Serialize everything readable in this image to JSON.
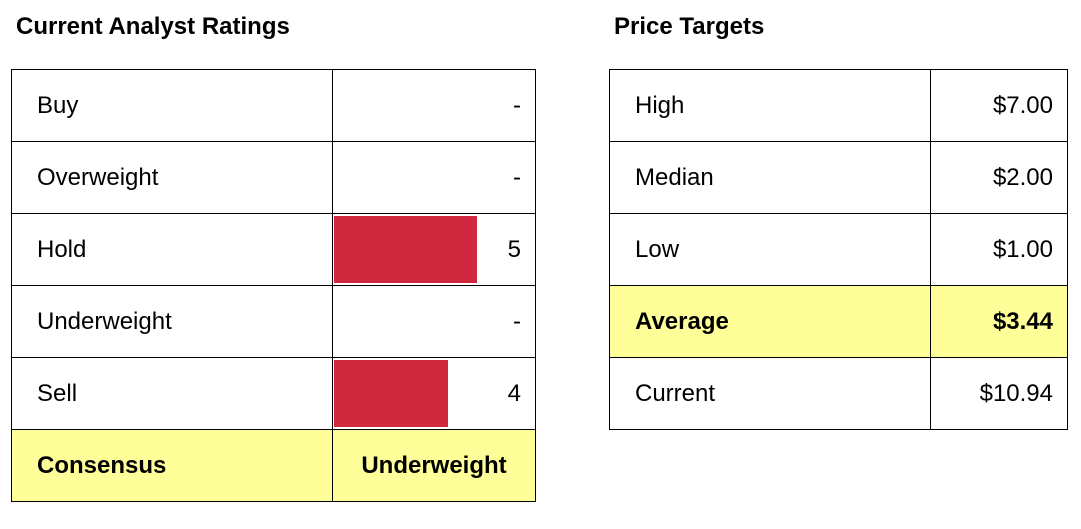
{
  "ratings": {
    "title": "Current Analyst Ratings",
    "max_count": 5,
    "rows": [
      {
        "label": "Buy",
        "value": "-",
        "count": 0
      },
      {
        "label": "Overweight",
        "value": "-",
        "count": 0
      },
      {
        "label": "Hold",
        "value": "5",
        "count": 5
      },
      {
        "label": "Underweight",
        "value": "-",
        "count": 0
      },
      {
        "label": "Sell",
        "value": "4",
        "count": 4
      }
    ],
    "consensus": {
      "label": "Consensus",
      "value": "Underweight"
    },
    "bar_color": "#d0283f"
  },
  "targets": {
    "title": "Price Targets",
    "rows": [
      {
        "label": "High",
        "value": "$7.00"
      },
      {
        "label": "Median",
        "value": "$2.00"
      },
      {
        "label": "Low",
        "value": "$1.00"
      },
      {
        "label": "Average",
        "value": "$3.44",
        "highlight": true
      },
      {
        "label": "Current",
        "value": "$10.94"
      }
    ]
  },
  "highlight_color": "#ffff99"
}
